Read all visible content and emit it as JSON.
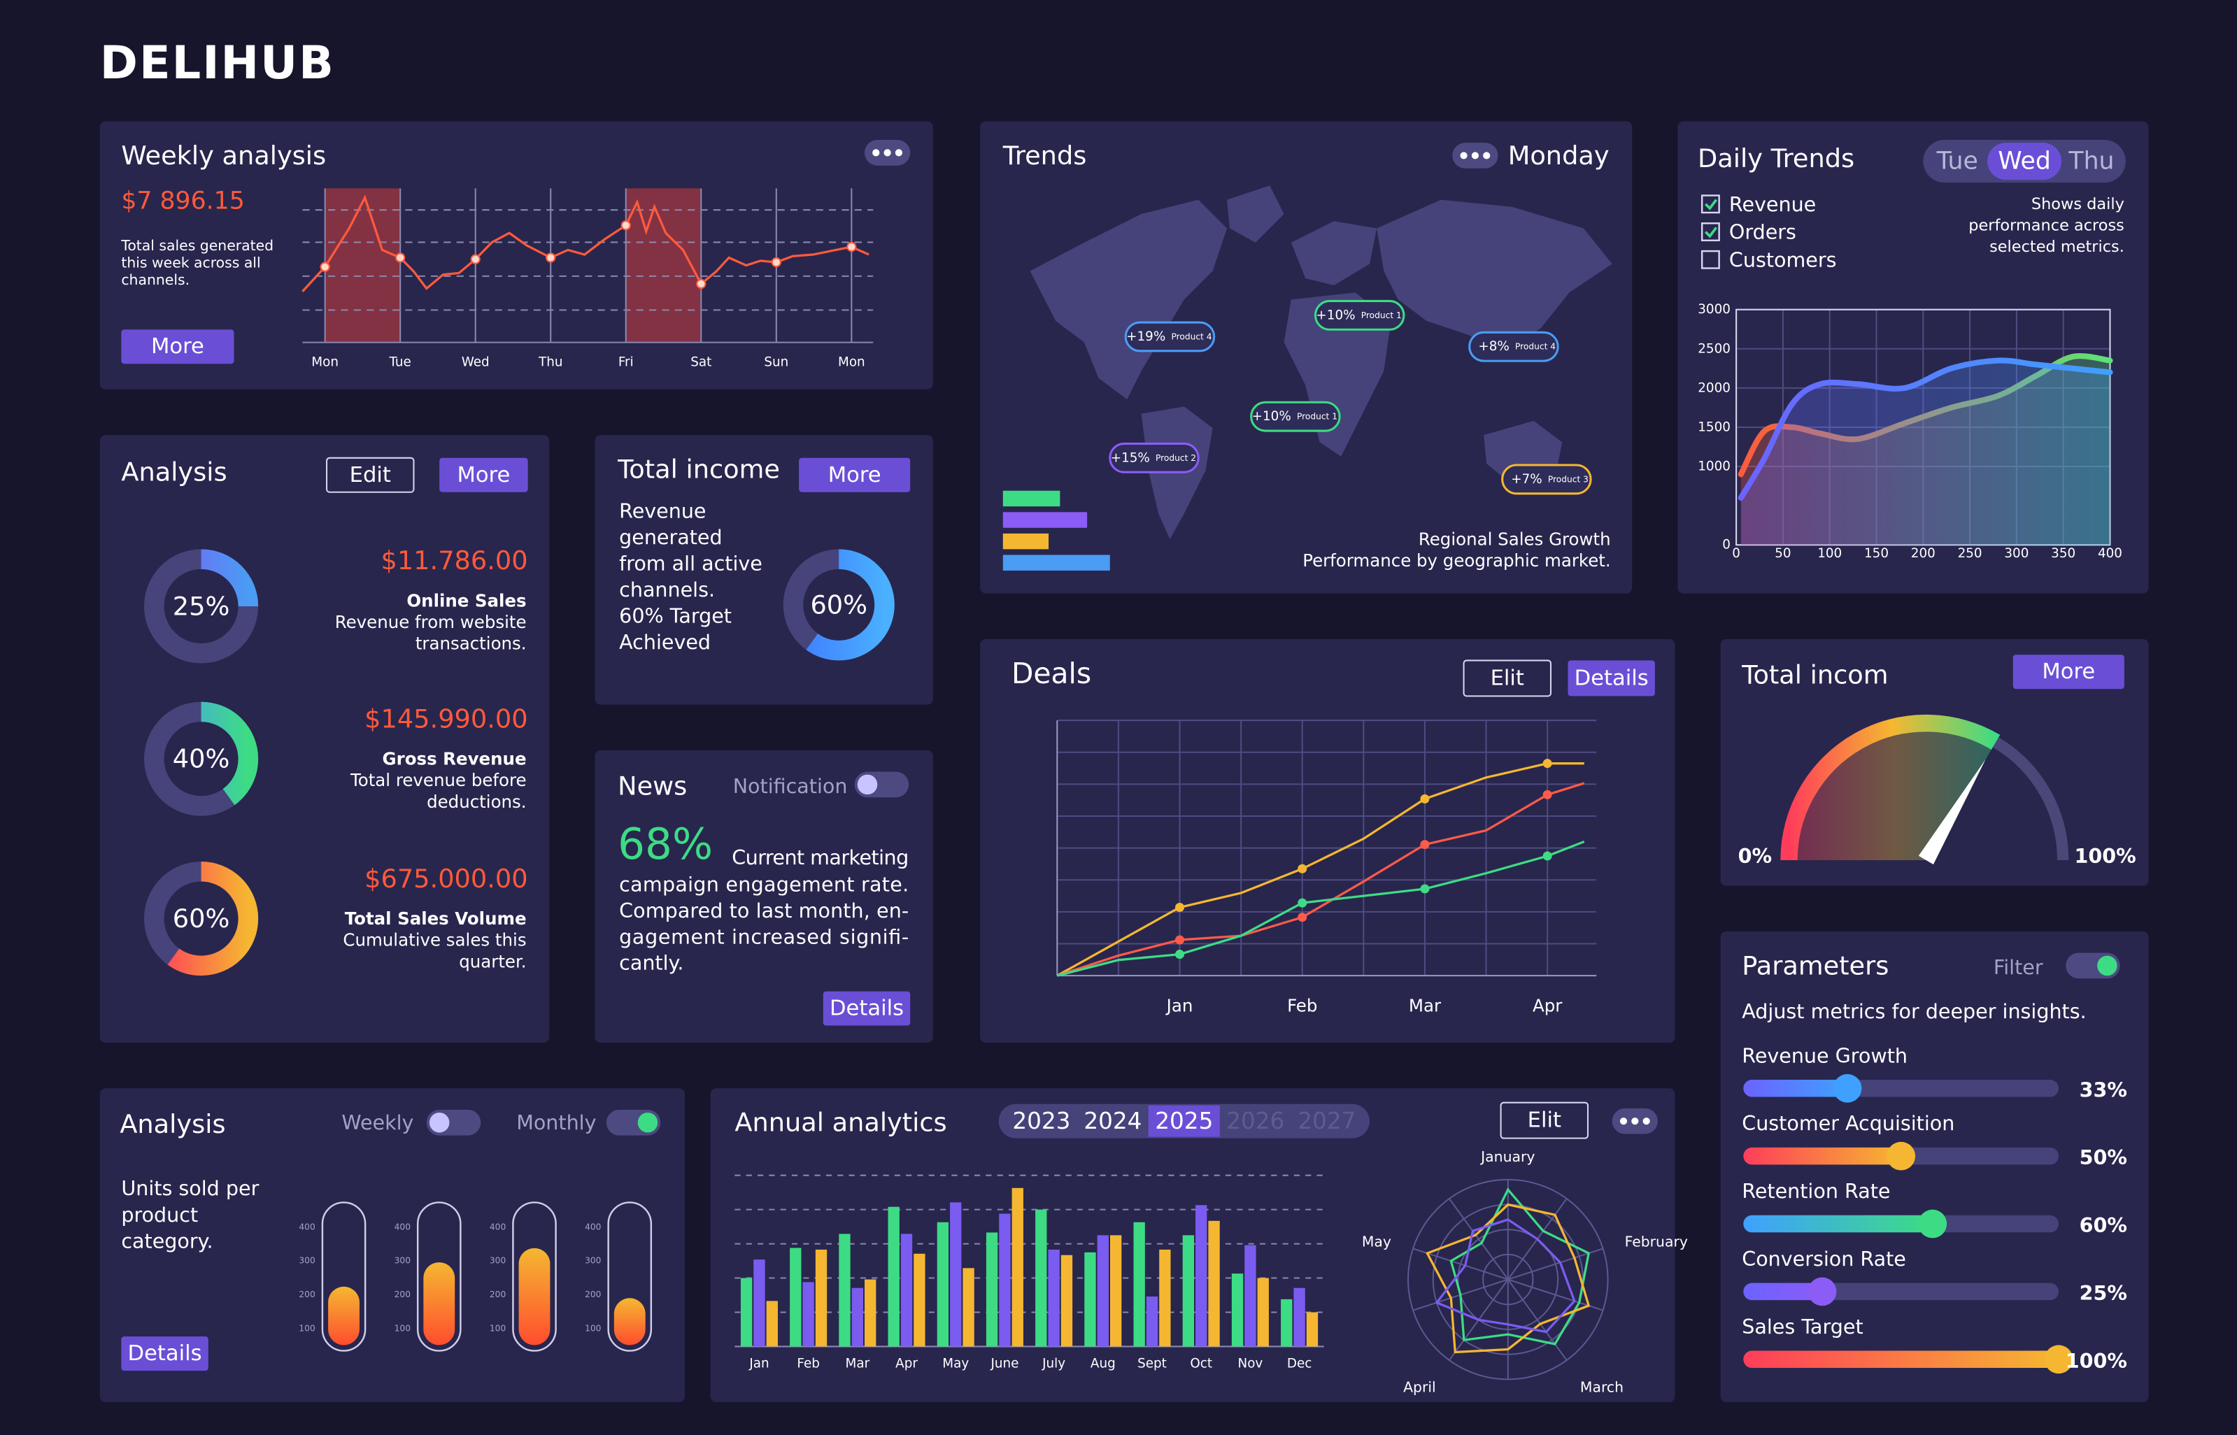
{
  "brand": "DELIHUB",
  "weekly_analysis": {
    "title": "Weekly analysis",
    "amount": "$7 896.15",
    "description": [
      "Total sales generated",
      "this week across all",
      "channels."
    ],
    "button": "More",
    "chart": {
      "type": "line",
      "x": [
        -0.3,
        0,
        0.32,
        0.53,
        0.76,
        1,
        1.18,
        1.35,
        1.57,
        1.78,
        2,
        2.22,
        2.45,
        2.68,
        3,
        3.23,
        3.45,
        3.72,
        4,
        4.15,
        4.27,
        4.38,
        4.53,
        4.76,
        5,
        5.2,
        5.37,
        5.6,
        5.79,
        6,
        6.22,
        6.49,
        6.79,
        7,
        7.23
      ],
      "values": [
        33,
        49,
        74,
        94,
        60,
        55,
        46,
        35,
        44,
        45,
        54,
        65,
        71,
        63,
        55,
        60,
        57,
        67,
        76,
        91,
        72,
        88,
        71,
        60,
        38,
        46,
        55,
        50,
        53,
        52,
        56,
        57,
        60,
        62,
        57
      ],
      "color": "#ff5a3c",
      "xlim": [
        -0.3,
        7.23
      ],
      "ylim": [
        0,
        100
      ],
      "xticks": [
        {
          "value": 0,
          "label": "Mon"
        },
        {
          "value": 1,
          "label": "Tue"
        },
        {
          "value": 2,
          "label": "Wed"
        },
        {
          "value": 3,
          "label": "Thu"
        },
        {
          "value": 4,
          "label": "Fri"
        },
        {
          "value": 5,
          "label": "Sat"
        },
        {
          "value": 6,
          "label": "Sun"
        },
        {
          "value": 7,
          "label": "Mon"
        }
      ],
      "y_grid": [
        21,
        43,
        65,
        86
      ]
    }
  },
  "trends": {
    "title": "Trends",
    "day": "Monday",
    "tags": [
      {
        "change": "+19%",
        "product": "Product 4",
        "color": "#4a9cf5"
      },
      {
        "change": "+10%",
        "product": "Product 1",
        "color": "#3ddc84"
      },
      {
        "change": "+8%",
        "product": "Product 4",
        "color": "#4a9cf5"
      },
      {
        "change": "+10%",
        "product": "Product 1",
        "color": "#3ddc84"
      },
      {
        "change": "+15%",
        "product": "Product 2",
        "color": "#8b5cf6"
      },
      {
        "change": "+7%",
        "product": "Product 3",
        "color": "#f5b731"
      }
    ],
    "bars": [
      {
        "value": 40,
        "color": "#3ddc84"
      },
      {
        "value": 59,
        "color": "#8b5cf6"
      },
      {
        "value": 32,
        "color": "#f5b731"
      },
      {
        "value": 75,
        "color": "#4a9cf5"
      }
    ],
    "caption": [
      "Regional Sales Growth",
      "Performance by geographic market."
    ]
  },
  "daily_trends": {
    "title": "Daily Trends",
    "days": [
      {
        "label": "Tue",
        "selected": false
      },
      {
        "label": "Wed",
        "selected": true
      },
      {
        "label": "Thu",
        "selected": false
      }
    ],
    "metrics": [
      {
        "label": "Revenue",
        "checked": true
      },
      {
        "label": "Orders",
        "checked": true
      },
      {
        "label": "Customers",
        "checked": false
      }
    ],
    "note": [
      "Shows daily",
      "performance across",
      "selected metrics."
    ],
    "chart": {
      "type": "area",
      "x": [
        5,
        30,
        60,
        90,
        130,
        180,
        230,
        280,
        320,
        360,
        400
      ],
      "series": [
        {
          "colors": [
            "#ff5a3c",
            "#5be37a"
          ],
          "values": [
            900,
            1450,
            1500,
            1420,
            1350,
            1550,
            1750,
            1900,
            2150,
            2400,
            2350
          ]
        },
        {
          "colors": [
            "#6c63ff",
            "#3fa0ff"
          ],
          "values": [
            600,
            1100,
            1800,
            2050,
            2050,
            2000,
            2250,
            2350,
            2300,
            2250,
            2200
          ]
        }
      ],
      "xlim": [
        0,
        400
      ],
      "ylim": [
        0,
        3000
      ],
      "xticks": [
        0,
        50,
        100,
        150,
        200,
        250,
        300,
        350,
        400
      ],
      "yticks": [
        0,
        1000,
        1500,
        2000,
        2500,
        3000
      ]
    }
  },
  "analysis": {
    "title": "Analysis",
    "buttons": [
      "Edit",
      "More"
    ],
    "items": [
      {
        "value": 25,
        "value_label": "25%",
        "colors": [
          "#7b5cf0",
          "#4a9cf5"
        ],
        "amount": "$11.786.00",
        "name": "Online Sales",
        "description": [
          "Revenue from website",
          "transactions."
        ]
      },
      {
        "value": 40,
        "value_label": "40%",
        "colors": [
          "#4a9cf5",
          "#3ddc84"
        ],
        "amount": "$145.990.00",
        "name": "Gross Revenue",
        "description": [
          "Total revenue before",
          "deductions."
        ]
      },
      {
        "value": 60,
        "value_label": "60%",
        "colors": [
          "#ff3d5a",
          "#f5b731"
        ],
        "amount": "$675.000.00",
        "name": "Total Sales Volume",
        "description": [
          "Cumulative sales this",
          "quarter."
        ]
      }
    ]
  },
  "total_income": {
    "title": "Total income",
    "button": "More",
    "description": [
      "Revenue",
      "generated",
      "from all active",
      "channels.",
      "60% Target",
      "Achieved"
    ],
    "value": 60,
    "value_label": "60%",
    "colors": [
      "#3f7bff",
      "#4ab0ff"
    ]
  },
  "news": {
    "title": "News",
    "toggle_label": "Notification",
    "toggle_on": false,
    "value": 68,
    "value_label": "68%",
    "text": [
      "Current marketing",
      "campaign engagement rate.",
      "Compared to last month, en-",
      "gagement increased signifi-",
      "cantly."
    ],
    "button": "Details"
  },
  "deals": {
    "title": "Deals",
    "buttons": [
      "Elit",
      "Details"
    ],
    "chart": {
      "type": "line",
      "x": [
        0,
        0.5,
        1,
        1.5,
        2,
        2.5,
        3,
        3.5,
        4,
        4.3
      ],
      "series": [
        {
          "color": "#f5b731",
          "values": [
            0,
            1.07,
            2.14,
            2.59,
            3.35,
            4.29,
            5.54,
            6.21,
            6.65,
            6.65
          ]
        },
        {
          "color": "#ff5a4a",
          "values": [
            0,
            0.63,
            1.12,
            1.25,
            1.83,
            2.95,
            4.11,
            4.55,
            5.67,
            6.03
          ]
        },
        {
          "color": "#3ddc84",
          "values": [
            0,
            0.49,
            0.67,
            1.25,
            2.28,
            2.5,
            2.72,
            3.21,
            3.75,
            4.2
          ]
        }
      ],
      "xlim": [
        0,
        4.4
      ],
      "ylim": [
        0,
        8
      ],
      "xticks": [
        {
          "value": 1,
          "label": "Jan"
        },
        {
          "value": 2,
          "label": "Feb"
        },
        {
          "value": 3,
          "label": "Mar"
        },
        {
          "value": 4,
          "label": "Apr"
        }
      ],
      "x_grid": [
        0.5,
        1,
        1.5,
        2,
        2.5,
        3,
        3.5,
        4
      ],
      "y_grid": [
        1,
        2,
        3,
        4,
        5,
        6,
        7,
        8
      ]
    }
  },
  "total_incom": {
    "title": "Total incom",
    "button": "More",
    "gauge": {
      "type": "gauge",
      "min": 0,
      "max": 100,
      "value": 67,
      "ticks": [
        {
          "value": 0,
          "label": "0%"
        },
        {
          "value": 100,
          "label": "100%"
        }
      ],
      "colors": [
        "#ff3d5a",
        "#f5b731",
        "#3ddc84"
      ]
    }
  },
  "parameters": {
    "title": "Parameters",
    "toggle_label": "Filter",
    "toggle_on": true,
    "subtitle": "Adjust metrics for deeper insights.",
    "range": [
      0,
      100
    ],
    "sliders": [
      {
        "label": "Revenue Growth",
        "value": 33,
        "value_label": "33%",
        "colors": [
          "#6c63ff",
          "#3fa0ff"
        ]
      },
      {
        "label": "Customer Acquisition",
        "value": 50,
        "value_label": "50%",
        "colors": [
          "#ff3d5a",
          "#f5b731"
        ]
      },
      {
        "label": "Retention Rate",
        "value": 60,
        "value_label": "60%",
        "colors": [
          "#3fa0ff",
          "#3ddc84"
        ]
      },
      {
        "label": "Conversion Rate",
        "value": 25,
        "value_label": "25%",
        "colors": [
          "#6c63ff",
          "#8b5cf6"
        ]
      },
      {
        "label": "Sales Target",
        "value": 100,
        "value_label": "100%",
        "colors": [
          "#ff3d5a",
          "#f5b731"
        ]
      }
    ]
  },
  "units_analysis": {
    "title": "Analysis",
    "toggles": [
      {
        "label": "Weekly",
        "on": false
      },
      {
        "label": "Monthly",
        "on": true
      }
    ],
    "description": [
      "Units sold per",
      "product",
      "category."
    ],
    "button": "Details",
    "chart": {
      "type": "bar",
      "values": [
        223,
        295,
        337,
        189
      ],
      "ylim": [
        50,
        450
      ],
      "yticks": [
        100,
        200,
        300,
        400
      ],
      "colors": [
        "#f5b731",
        "#ff4d2e"
      ]
    }
  },
  "annual_analytics": {
    "title": "Annual analytics",
    "years": [
      {
        "label": "2023",
        "state": "normal"
      },
      {
        "label": "2024",
        "state": "normal"
      },
      {
        "label": "2025",
        "state": "selected"
      },
      {
        "label": "2026",
        "state": "disabled"
      },
      {
        "label": "2027",
        "state": "disabled"
      }
    ],
    "button": "Elit",
    "bar_chart": {
      "type": "bar",
      "categories": [
        "Jan",
        "Feb",
        "Mar",
        "Apr",
        "May",
        "June",
        "July",
        "Aug",
        "Sept",
        "Oct",
        "Nov",
        "Dec"
      ],
      "series": [
        {
          "color": "#3ddc84",
          "values": [
            2,
            2.88,
            3.29,
            4.08,
            3.63,
            3.33,
            4,
            2.75,
            3.63,
            3.25,
            2.13,
            1.38
          ]
        },
        {
          "color": "#7b5cf0",
          "values": [
            2.54,
            1.88,
            1.71,
            3.29,
            4.21,
            3.88,
            2.83,
            3.25,
            1.46,
            4.13,
            2.96,
            1.71
          ]
        },
        {
          "color": "#f5b731",
          "values": [
            1.33,
            2.83,
            1.96,
            2.71,
            2.29,
            4.63,
            2.67,
            3.25,
            2.83,
            3.67,
            2,
            1
          ]
        }
      ],
      "ylim": [
        0,
        5
      ],
      "y_grid": [
        1,
        2,
        3,
        4,
        5
      ]
    },
    "radar_chart": {
      "type": "radar",
      "categories": [
        "January",
        null,
        "February",
        null,
        "March",
        null,
        "April",
        null,
        "May",
        null
      ],
      "series": [
        {
          "color": "#3ddc84",
          "values": [
            90,
            60,
            85,
            75,
            80,
            55,
            75,
            50,
            60,
            45
          ]
        },
        {
          "color": "#f5b731",
          "values": [
            75,
            80,
            70,
            85,
            55,
            70,
            90,
            60,
            85,
            55
          ]
        },
        {
          "color": "#7b5cf0",
          "values": [
            60,
            50,
            55,
            70,
            65,
            45,
            50,
            75,
            45,
            60
          ]
        }
      ],
      "rlim": [
        0,
        100
      ],
      "r_grid": [
        25,
        50,
        75,
        100
      ]
    }
  }
}
